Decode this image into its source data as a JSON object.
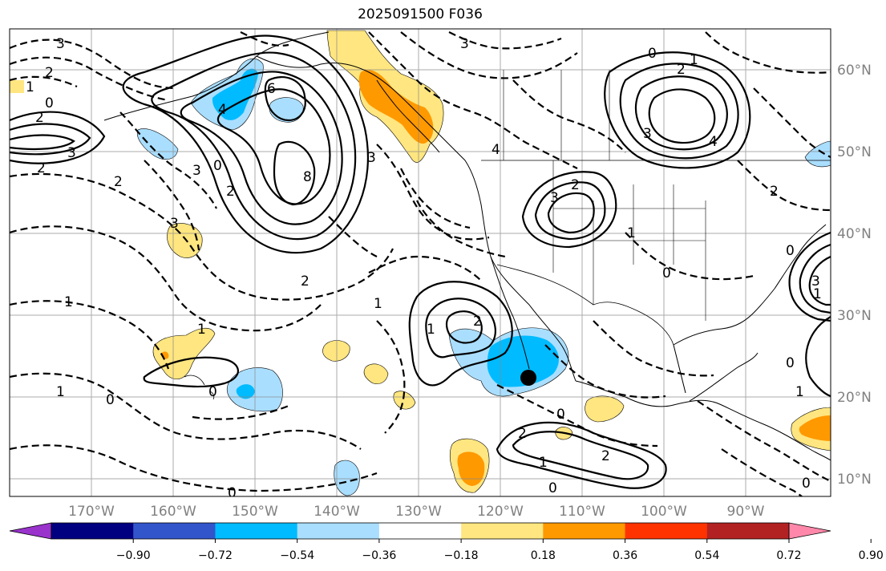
{
  "title": "2025091500 F036",
  "map": {
    "lon_labels": [
      "170°W",
      "160°W",
      "150°W",
      "140°W",
      "130°W",
      "120°W",
      "110°W",
      "100°W",
      "90°W"
    ],
    "lat_labels": [
      "60°N",
      "50°N",
      "40°N",
      "30°N",
      "20°N",
      "10°N"
    ],
    "contour_labels": [
      "3",
      "2",
      "3",
      "2",
      "1",
      "0",
      "2",
      "3",
      "4",
      "6",
      "8",
      "3",
      "2",
      "3",
      "4",
      "2",
      "1",
      "0",
      "2",
      "3",
      "1",
      "2",
      "1",
      "0",
      "2",
      "1",
      "0",
      "1",
      "0",
      "0",
      "1",
      "0",
      "3",
      "3",
      "2",
      "1",
      "0",
      "1",
      "2",
      "4",
      "3",
      "2",
      "0",
      "0",
      "1",
      "0",
      "2",
      "1",
      "0"
    ],
    "marker": "filled-circle"
  },
  "colorbar": {
    "colors": [
      "#9933cc",
      "#000080",
      "#3355cc",
      "#00bbff",
      "#aadeff",
      "#ffffff",
      "#ffe680",
      "#ff9900",
      "#ff3300",
      "#b22222",
      "#ff88aa"
    ],
    "tick_labels": [
      "−0.90",
      "−0.72",
      "−0.54",
      "−0.36",
      "−0.18",
      "0.18",
      "0.36",
      "0.54",
      "0.72",
      "0.90"
    ]
  },
  "fill_colors": {
    "neg_light": "#aadeff",
    "neg_medium": "#00bbff",
    "pos_light": "#ffe680",
    "pos_medium": "#ff9900"
  }
}
